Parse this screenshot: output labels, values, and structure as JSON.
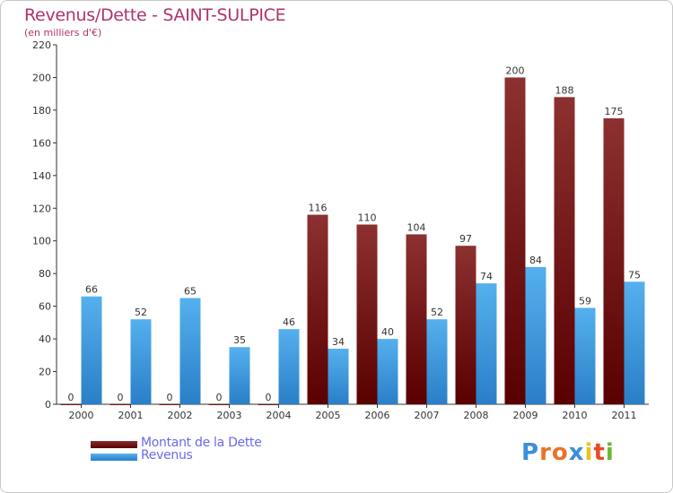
{
  "title": "Revenus/Dette - SAINT-SULPICE",
  "subtitle": "(en milliers d'€)",
  "chart_data": {
    "type": "bar",
    "categories": [
      "2000",
      "2001",
      "2002",
      "2003",
      "2004",
      "2005",
      "2006",
      "2007",
      "2008",
      "2009",
      "2010",
      "2011"
    ],
    "series": [
      {
        "name": "Montant de la Dette",
        "color": "#7a1414",
        "values": [
          0,
          0,
          0,
          0,
          0,
          116,
          110,
          104,
          97,
          200,
          188,
          175
        ]
      },
      {
        "name": "Revenus",
        "color": "#4aa3e8",
        "values": [
          66,
          52,
          65,
          35,
          46,
          34,
          40,
          52,
          74,
          84,
          59,
          75
        ]
      }
    ],
    "ylim": [
      0,
      220
    ],
    "yticks": [
      0,
      20,
      40,
      60,
      80,
      100,
      120,
      140,
      160,
      180,
      200,
      220
    ],
    "grid": false,
    "legend_position": "bottom-left"
  },
  "legend": [
    {
      "label": "Montant de la Dette",
      "color": "#7a1414"
    },
    {
      "label": "Revenus",
      "color": "#4aa3e8"
    }
  ],
  "logo": {
    "letters": [
      "P",
      "r",
      "o",
      "x",
      "i",
      "t",
      "i"
    ],
    "colors": [
      "#3a8fd8",
      "#e8732a",
      "#e8732a",
      "#3a8fd8",
      "#f0c020",
      "#e84a2a",
      "#6ab832"
    ]
  }
}
